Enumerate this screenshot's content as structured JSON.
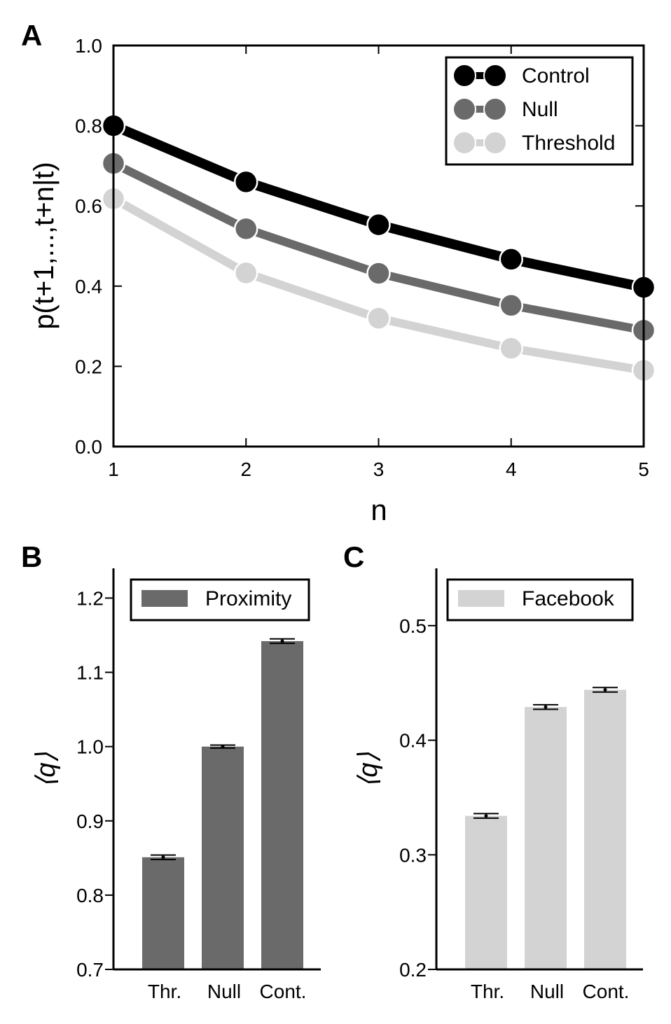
{
  "panels": {
    "a": {
      "label": "A"
    },
    "b": {
      "label": "B"
    },
    "c": {
      "label": "C"
    }
  },
  "chart_data": [
    {
      "type": "line",
      "panel": "A",
      "xlabel": "n",
      "ylabel": "p(t+1,...,t+n|t)",
      "x": [
        1,
        2,
        3,
        4,
        5
      ],
      "xticks": [
        "1",
        "2",
        "3",
        "4",
        "5"
      ],
      "xlim": [
        1,
        5
      ],
      "ylim": [
        0.0,
        1.0
      ],
      "yticks": [
        "0.0",
        "0.2",
        "0.4",
        "0.6",
        "0.8",
        "1.0"
      ],
      "legend_position": "top-right",
      "grid": false,
      "series": [
        {
          "name": "Control",
          "color": "#000000",
          "values": [
            0.8,
            0.66,
            0.553,
            0.467,
            0.397
          ]
        },
        {
          "name": "Null",
          "color": "#6a6a6a",
          "values": [
            0.706,
            0.543,
            0.432,
            0.352,
            0.29
          ]
        },
        {
          "name": "Threshold",
          "color": "#d3d3d3",
          "values": [
            0.618,
            0.433,
            0.32,
            0.245,
            0.19
          ]
        }
      ]
    },
    {
      "type": "bar",
      "panel": "B",
      "xlabel": "",
      "ylabel": "⟨q⟩",
      "categories": [
        "Thr.",
        "Null",
        "Cont."
      ],
      "ylim": [
        0.7,
        1.24
      ],
      "yticks": [
        "0.7",
        "0.8",
        "0.9",
        "1.0",
        "1.1",
        "1.2"
      ],
      "legend_position": "top",
      "grid": false,
      "series": [
        {
          "name": "Proximity",
          "color": "#6a6a6a",
          "values": [
            0.851,
            1.0,
            1.142
          ],
          "errors": [
            0.003,
            0.002,
            0.003
          ]
        }
      ]
    },
    {
      "type": "bar",
      "panel": "C",
      "xlabel": "",
      "ylabel": "⟨q⟩",
      "categories": [
        "Thr.",
        "Null",
        "Cont."
      ],
      "ylim": [
        0.2,
        0.55
      ],
      "yticks": [
        "0.2",
        "0.3",
        "0.4",
        "0.5"
      ],
      "legend_position": "top",
      "grid": false,
      "series": [
        {
          "name": "Facebook",
          "color": "#d3d3d3",
          "values": [
            0.334,
            0.429,
            0.444
          ],
          "errors": [
            0.002,
            0.002,
            0.002
          ]
        }
      ]
    }
  ]
}
